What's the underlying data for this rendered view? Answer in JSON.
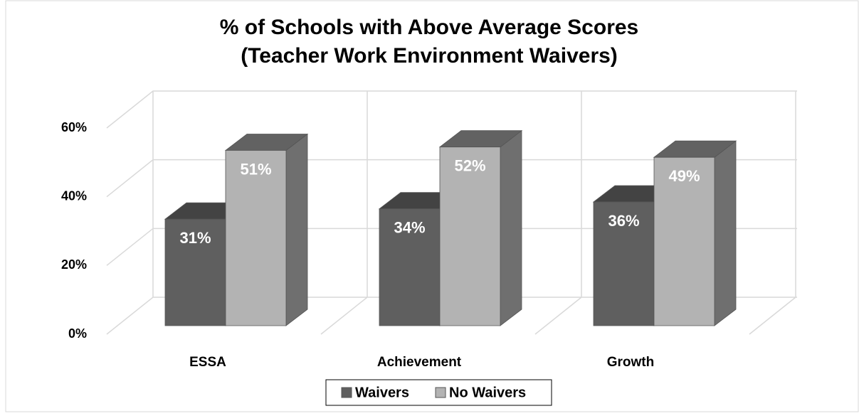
{
  "chart_data": {
    "type": "bar3d",
    "title": [
      "% of Schools with Above Average Scores",
      "(Teacher Work Environment Waivers)"
    ],
    "categories": [
      "ESSA",
      "Achievement",
      "Growth"
    ],
    "series": [
      {
        "name": "Waivers",
        "color": "#5f5f5f",
        "values": [
          31,
          34,
          36
        ],
        "value_labels": [
          "31%",
          "34%",
          "36%"
        ]
      },
      {
        "name": "No Waivers",
        "color": "#b3b3b3",
        "values": [
          51,
          52,
          49
        ],
        "value_labels": [
          "51%",
          "52%",
          "49%"
        ]
      }
    ],
    "ylim": [
      0,
      60
    ],
    "yticks": [
      {
        "value": 0,
        "label": "0%"
      },
      {
        "value": 20,
        "label": "20%"
      },
      {
        "value": 40,
        "label": "40%"
      },
      {
        "value": 60,
        "label": "60%"
      }
    ],
    "grid": true,
    "legend": "bottom"
  }
}
